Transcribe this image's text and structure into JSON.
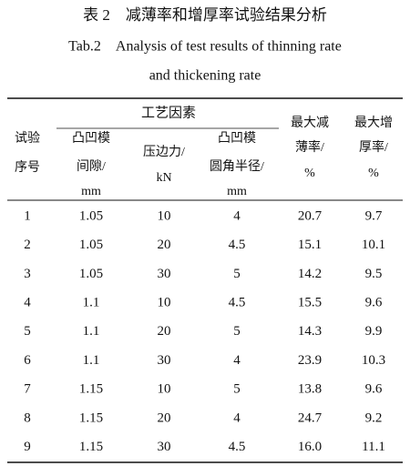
{
  "caption": {
    "title_cn": "表 2　减薄率和增厚率试验结果分析",
    "title_en_1": "Tab.2　Analysis of test results of thinning rate",
    "title_en_2": "and thickening rate"
  },
  "table": {
    "group_header": "工艺因素",
    "headers": [
      [
        "试验",
        "序号"
      ],
      [
        "凸凹模",
        "间隙/",
        "mm"
      ],
      [
        "压边力/",
        "kN"
      ],
      [
        "凸凹模",
        "圆角半径/",
        "mm"
      ],
      [
        "最大减",
        "薄率/",
        "%"
      ],
      [
        "最大增",
        "厚率/",
        "%"
      ]
    ],
    "rows": [
      [
        "1",
        "1.05",
        "10",
        "4",
        "20.7",
        "9.7"
      ],
      [
        "2",
        "1.05",
        "20",
        "4.5",
        "15.1",
        "10.1"
      ],
      [
        "3",
        "1.05",
        "30",
        "5",
        "14.2",
        "9.5"
      ],
      [
        "4",
        "1.1",
        "10",
        "4.5",
        "15.5",
        "9.6"
      ],
      [
        "5",
        "1.1",
        "20",
        "5",
        "14.3",
        "9.9"
      ],
      [
        "6",
        "1.1",
        "30",
        "4",
        "23.9",
        "10.3"
      ],
      [
        "7",
        "1.15",
        "10",
        "5",
        "13.8",
        "9.6"
      ],
      [
        "8",
        "1.15",
        "20",
        "4",
        "24.7",
        "9.2"
      ],
      [
        "9",
        "1.15",
        "30",
        "4.5",
        "16.0",
        "11.1"
      ]
    ]
  }
}
